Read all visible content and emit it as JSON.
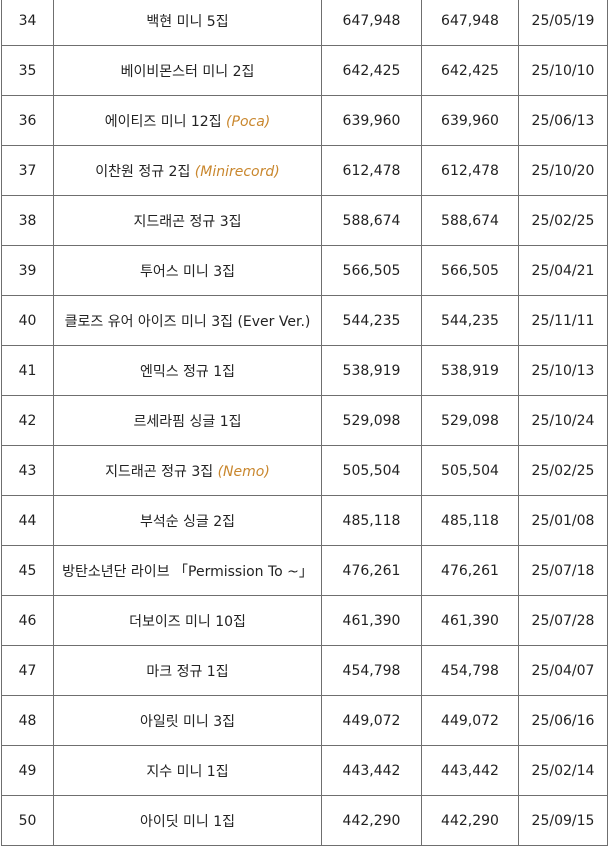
{
  "colors": {
    "blue": "#2a7fc0",
    "pink": "#e0257a",
    "note": "#c9872e"
  },
  "rows": [
    {
      "rank": "34",
      "album": "백현 미니 5집",
      "note": "",
      "total": "647,948",
      "week": "647,948",
      "date": "25/05/19",
      "color": "blue"
    },
    {
      "rank": "35",
      "album": "베이비몬스터 미니 2집",
      "note": "",
      "total": "642,425",
      "week": "642,425",
      "date": "25/10/10",
      "color": "blue"
    },
    {
      "rank": "36",
      "album": "에이티즈 미니 12집",
      "note": "(Poca)",
      "total": "639,960",
      "week": "639,960",
      "date": "25/06/13",
      "color": "blue"
    },
    {
      "rank": "37",
      "album": "이찬원 정규 2집",
      "note": "(Minirecord)",
      "total": "612,478",
      "week": "612,478",
      "date": "25/10/20",
      "color": "blue"
    },
    {
      "rank": "38",
      "album": "지드래곤 정규 3집",
      "note": "",
      "total": "588,674",
      "week": "588,674",
      "date": "25/02/25",
      "color": "blue"
    },
    {
      "rank": "39",
      "album": "투어스 미니 3집",
      "note": "",
      "total": "566,505",
      "week": "566,505",
      "date": "25/04/21",
      "color": "blue"
    },
    {
      "rank": "40",
      "album": "클로즈 유어 아이즈 미니 3집 (Ever Ver.)",
      "note": "",
      "total": "544,235",
      "week": "544,235",
      "date": "25/11/11",
      "color": "blue"
    },
    {
      "rank": "41",
      "album": "엔믹스 정규 1집",
      "note": "",
      "total": "538,919",
      "week": "538,919",
      "date": "25/10/13",
      "color": "blue"
    },
    {
      "rank": "42",
      "album": "르세라핌 싱글 1집",
      "note": "",
      "total": "529,098",
      "week": "529,098",
      "date": "25/10/24",
      "color": "blue"
    },
    {
      "rank": "43",
      "album": "지드래곤 정규 3집",
      "note": "(Nemo)",
      "total": "505,504",
      "week": "505,504",
      "date": "25/02/25",
      "color": "blue"
    },
    {
      "rank": "44",
      "album": "부석순 싱글 2집",
      "note": "",
      "total": "485,118",
      "week": "485,118",
      "date": "25/01/08",
      "color": "pink"
    },
    {
      "rank": "45",
      "album": "방탄소년단 라이브 「Permission To ~」",
      "note": "",
      "total": "476,261",
      "week": "476,261",
      "date": "25/07/18",
      "color": "pink"
    },
    {
      "rank": "46",
      "album": "더보이즈 미니 10집",
      "note": "",
      "total": "461,390",
      "week": "461,390",
      "date": "25/07/28",
      "color": "pink"
    },
    {
      "rank": "47",
      "album": "마크 정규 1집",
      "note": "",
      "total": "454,798",
      "week": "454,798",
      "date": "25/04/07",
      "color": "pink"
    },
    {
      "rank": "48",
      "album": "아일릿 미니 3집",
      "note": "",
      "total": "449,072",
      "week": "449,072",
      "date": "25/06/16",
      "color": "pink"
    },
    {
      "rank": "49",
      "album": "지수 미니 1집",
      "note": "",
      "total": "443,442",
      "week": "443,442",
      "date": "25/02/14",
      "color": "pink"
    },
    {
      "rank": "50",
      "album": "아이딧 미니 1집",
      "note": "",
      "total": "442,290",
      "week": "442,290",
      "date": "25/09/15",
      "color": "pink"
    }
  ]
}
